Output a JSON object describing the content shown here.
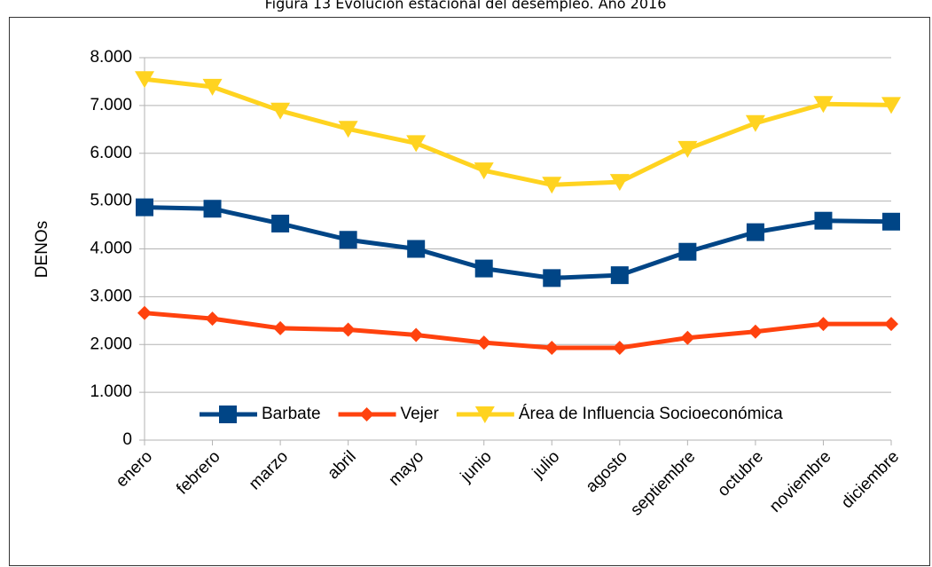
{
  "chart_data": {
    "type": "line",
    "title": "Figura 13 Evolución estacional del desempleo. Año 2016",
    "y_label": "DENOs",
    "categories": [
      "enero",
      "febrero",
      "marzo",
      "abril",
      "mayo",
      "junio",
      "julio",
      "agosto",
      "septiembre",
      "octubre",
      "noviembre",
      "diciembre"
    ],
    "series": [
      {
        "name": "Barbate",
        "color": "#004586",
        "marker": "square",
        "values": [
          4870,
          4840,
          4530,
          4190,
          4000,
          3590,
          3390,
          3450,
          3940,
          4350,
          4590,
          4570
        ]
      },
      {
        "name": "Vejer",
        "color": "#ff420e",
        "marker": "diamond",
        "values": [
          2660,
          2540,
          2340,
          2310,
          2200,
          2040,
          1930,
          1930,
          2140,
          2270,
          2430,
          2430
        ]
      },
      {
        "name": "Área de Influencia Socioeconómica",
        "color": "#ffd320",
        "marker": "triangle-down",
        "values": [
          7550,
          7390,
          6890,
          6510,
          6210,
          5640,
          5340,
          5400,
          6090,
          6630,
          7030,
          7010
        ]
      }
    ],
    "ylim": [
      0,
      8000
    ],
    "yticks": [
      0,
      {
        "value": 1000,
        "label": "1.000"
      },
      {
        "value": 2000,
        "label": "2.000"
      },
      {
        "value": 3000,
        "label": "3.000"
      },
      {
        "value": 4000,
        "label": "4.000"
      },
      {
        "value": 5000,
        "label": "5.000"
      },
      {
        "value": 6000,
        "label": "6.000"
      },
      {
        "value": 7000,
        "label": "7.000"
      },
      {
        "value": 8000,
        "label": "8.000"
      }
    ],
    "grid": true,
    "legend": "bottom"
  }
}
